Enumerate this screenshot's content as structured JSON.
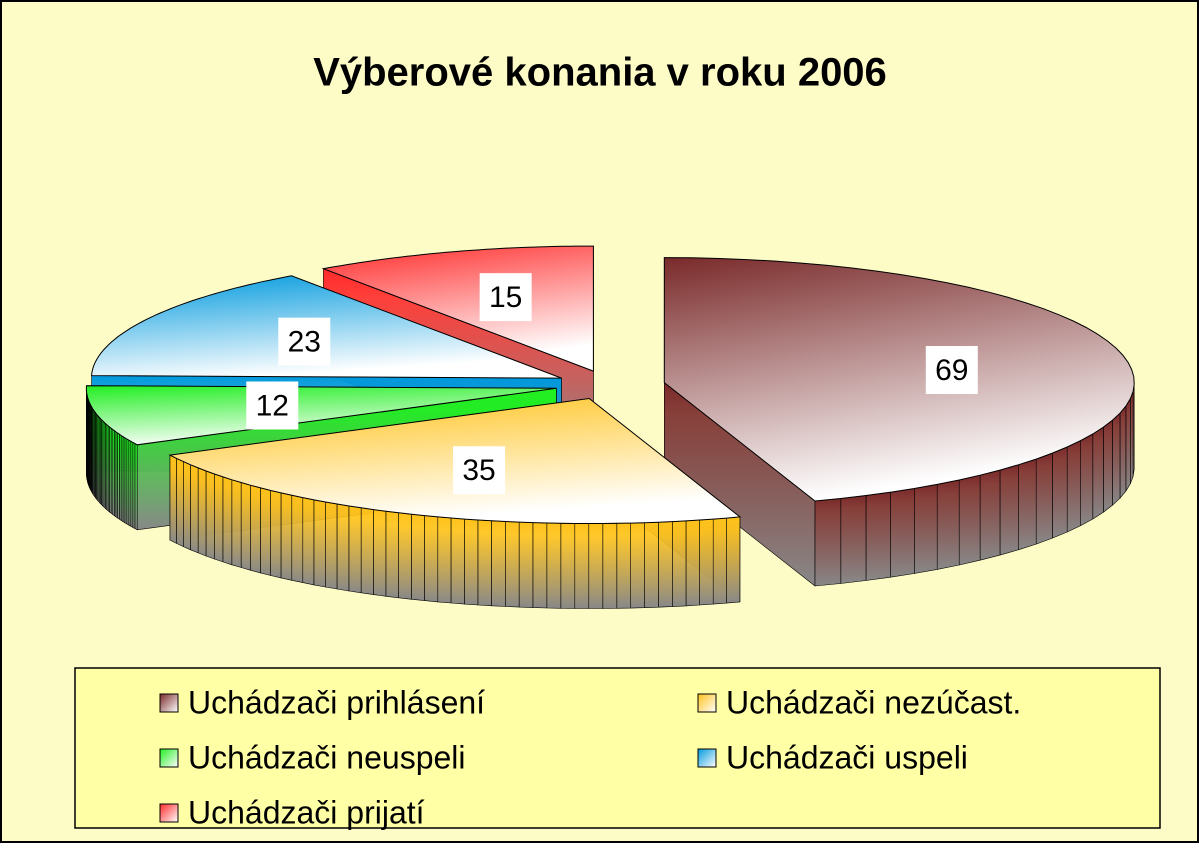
{
  "chart_data": {
    "type": "pie3d",
    "title": "Výberové konania v roku 2006",
    "categories": [
      "Uchádzači prihlásení",
      "Uchádzači nezúčast.",
      "Uchádzači neuspeli",
      "Uchádzači uspeli",
      "Uchádzači prijatí"
    ],
    "values": [
      69,
      35,
      12,
      23,
      15
    ],
    "colors": [
      "#7a2a2a",
      "#ffc21a",
      "#22ee22",
      "#0099dd",
      "#ff2a2a"
    ],
    "legend": "bottom"
  }
}
